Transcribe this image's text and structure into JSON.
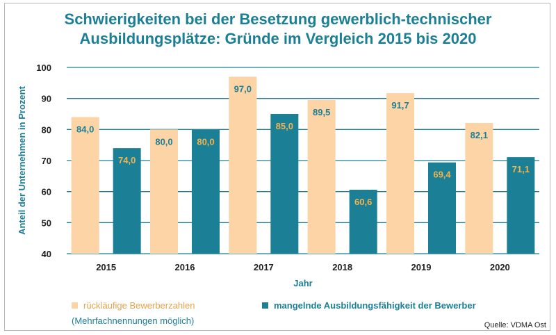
{
  "title_line1": "Schwierigkeiten bei der Besetzung gewerblich-technischer",
  "title_line2": "Ausbildungsplätze: Gründe im Vergleich 2015 bis 2020",
  "colors": {
    "series1": "#fcd4a6",
    "series1_text": "#e8a24a",
    "series2": "#1b7f95",
    "label_on_light": "#1b7f95",
    "label_on_dark": "#f2b450",
    "axis": "#1b7f95"
  },
  "legend_note": "(Mehrfachnennungen möglich)",
  "source": "Quelle: VDMA Ost",
  "chart_data": {
    "type": "bar",
    "title": "Schwierigkeiten bei der Besetzung gewerblich-technischer Ausbildungsplätze: Gründe im Vergleich 2015 bis 2020",
    "xlabel": "Jahr",
    "ylabel": "Anteil der Unternehmen in Prozent",
    "ylim": [
      40,
      100
    ],
    "yticks": [
      40,
      50,
      60,
      70,
      80,
      90,
      100
    ],
    "grid": true,
    "legend": "bottom",
    "categories": [
      "2015",
      "2016",
      "2017",
      "2018",
      "2019",
      "2020"
    ],
    "series": [
      {
        "name": "rückläufige Bewerberzahlen",
        "values": [
          84.0,
          80.0,
          97.0,
          89.5,
          91.7,
          82.1
        ],
        "labels": [
          "84,0",
          "80,0",
          "97,0",
          "89,5",
          "91,7",
          "82,1"
        ]
      },
      {
        "name": "mangelnde Ausbildungsfähigkeit der Bewerber",
        "values": [
          74.0,
          80.0,
          85.0,
          60.6,
          69.4,
          71.1
        ],
        "labels": [
          "74,0",
          "80,0",
          "85,0",
          "60,6",
          "69,4",
          "71,1"
        ]
      }
    ]
  }
}
